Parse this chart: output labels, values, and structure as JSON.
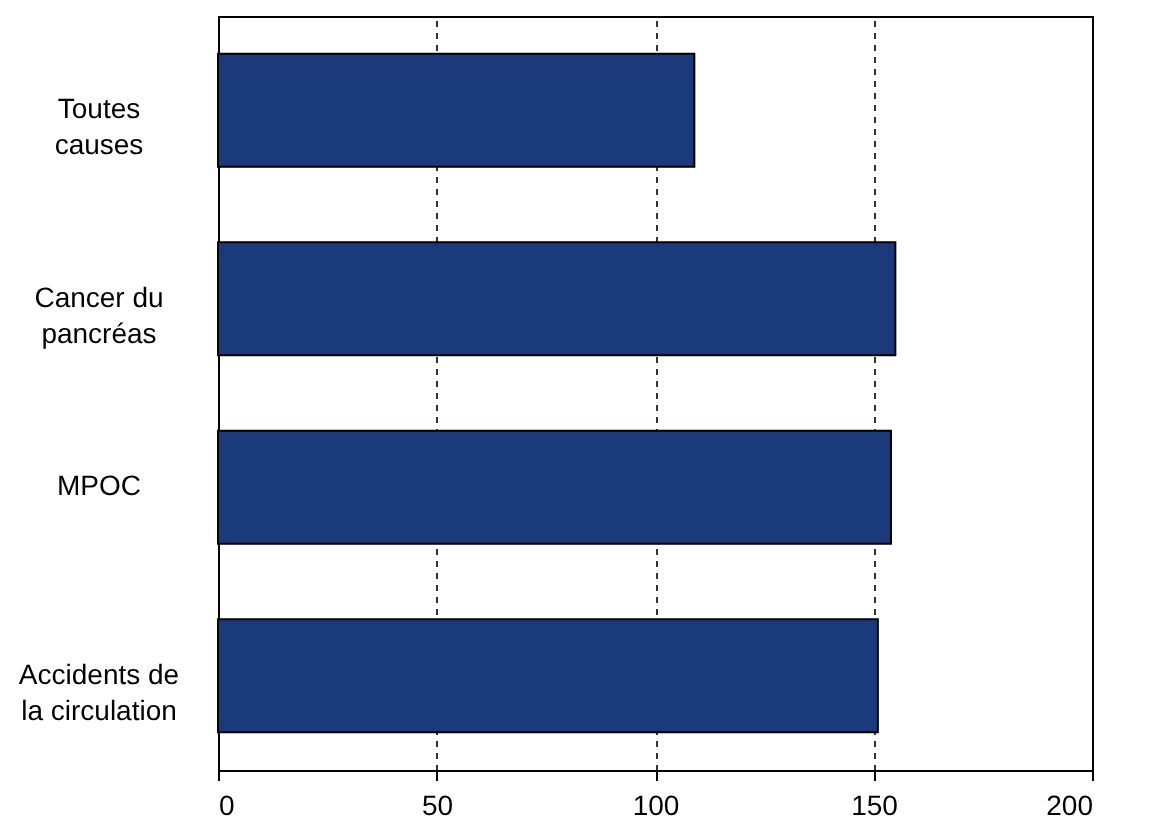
{
  "chart_data": {
    "type": "bar",
    "orientation": "horizontal",
    "categories": [
      "Toutes causes",
      "Cancer du pancréas",
      "MPOC",
      "Accidents de la circulation"
    ],
    "values": [
      109,
      155,
      154,
      151
    ],
    "color": "#1b3a7b",
    "xlim": [
      0,
      200
    ],
    "xticks": [
      0,
      50,
      100,
      150,
      200
    ],
    "grid": "x"
  }
}
